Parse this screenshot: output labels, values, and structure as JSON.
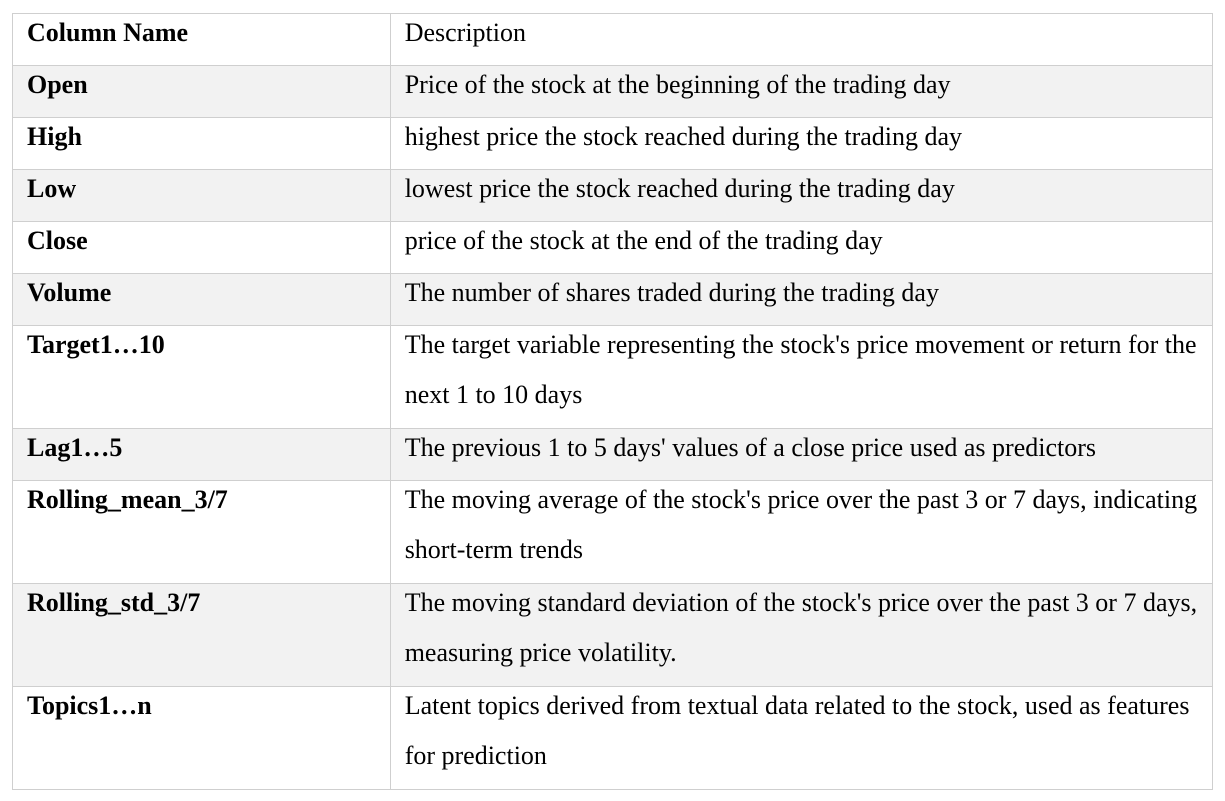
{
  "table": {
    "headers": {
      "name": "Column Name",
      "description": "Description"
    },
    "rows": [
      {
        "name": "Open",
        "description": "Price of the stock at the beginning of the trading day"
      },
      {
        "name": "High",
        "description": "highest price the stock reached during the trading day"
      },
      {
        "name": "Low",
        "description": "lowest price the stock reached during the trading day"
      },
      {
        "name": "Close",
        "description": "price of the stock at the end of the trading day"
      },
      {
        "name": "Volume",
        "description": "The number of shares traded during the trading day"
      },
      {
        "name": "Target1…10",
        "description": "The target variable representing the stock's price movement or return for the next 1 to 10 days"
      },
      {
        "name": "Lag1…5",
        "description": "The previous 1 to 5 days' values of a close price used as predictors"
      },
      {
        "name": "Rolling_mean_3/7",
        "description": "The moving average of the stock's price over the past 3 or 7 days, indicating short-term trends"
      },
      {
        "name": "Rolling_std_3/7",
        "description": "The moving standard deviation of the stock's price over the past 3 or 7 days, measuring price volatility."
      },
      {
        "name": "Topics1…n",
        "description": "Latent topics derived from textual data related to the stock, used as features for prediction"
      }
    ]
  }
}
